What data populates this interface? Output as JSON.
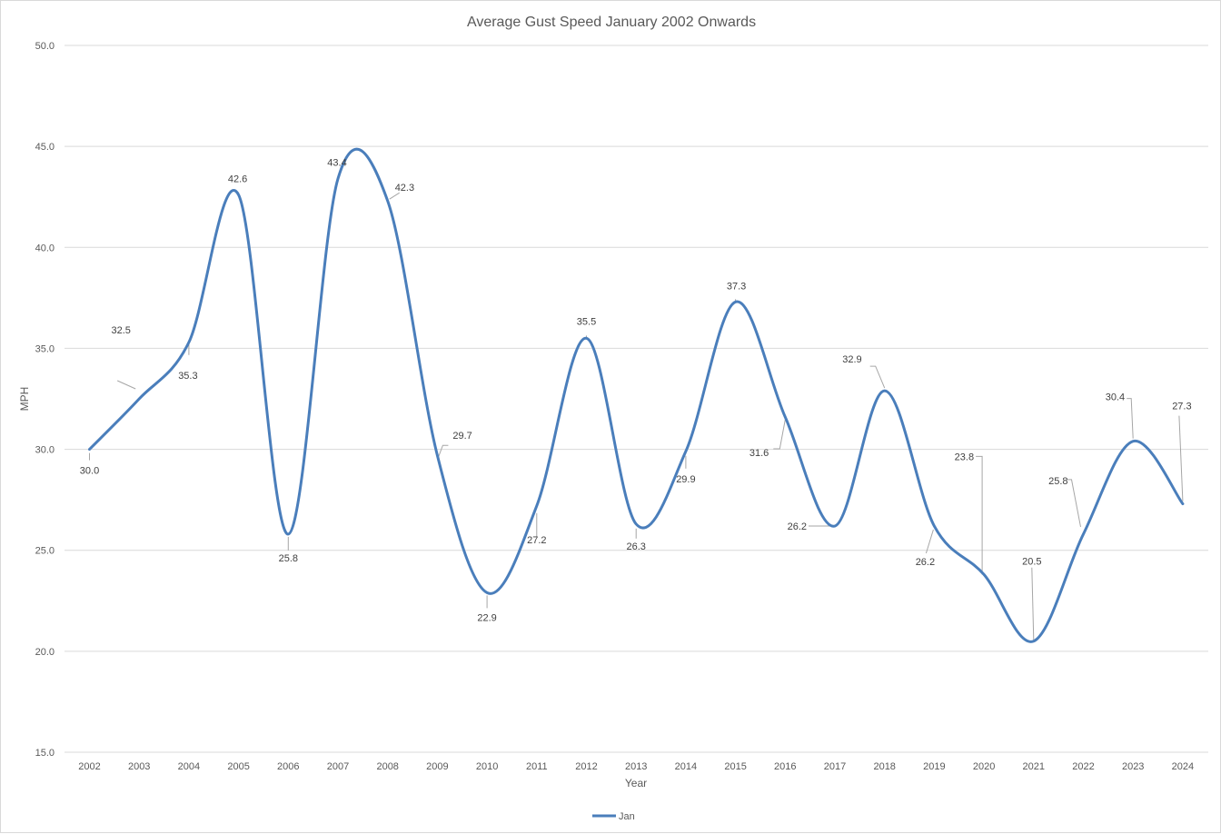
{
  "chart_data": {
    "type": "line",
    "title": "Average Gust Speed January 2002 Onwards",
    "xlabel": "Year",
    "ylabel": "MPH",
    "ylim": [
      15,
      50
    ],
    "y_ticks": [
      "15.0",
      "20.0",
      "25.0",
      "30.0",
      "35.0",
      "40.0",
      "45.0",
      "50.0"
    ],
    "categories": [
      "2002",
      "2003",
      "2004",
      "2005",
      "2006",
      "2007",
      "2008",
      "2009",
      "2010",
      "2011",
      "2012",
      "2013",
      "2014",
      "2015",
      "2016",
      "2017",
      "2018",
      "2019",
      "2020",
      "2021",
      "2022",
      "2023",
      "2024"
    ],
    "series": [
      {
        "name": "Jan",
        "color": "#4a7ebb",
        "values": [
          30.0,
          32.5,
          35.3,
          42.6,
          25.8,
          43.4,
          42.3,
          29.7,
          22.9,
          27.2,
          35.5,
          26.3,
          29.9,
          37.3,
          31.6,
          26.2,
          32.9,
          26.2,
          23.8,
          20.5,
          25.8,
          30.4,
          27.3
        ],
        "labels": [
          "30.0",
          "32.5",
          "35.3",
          "42.6",
          "25.8",
          "43.4",
          "42.3",
          "29.7",
          "22.9",
          "27.2",
          "35.5",
          "26.3",
          "29.9",
          "37.3",
          "31.6",
          "26.2",
          "32.9",
          "26.2",
          "23.8",
          "20.5",
          "25.8",
          "30.4",
          "27.3"
        ]
      }
    ],
    "smooth": true,
    "grid": true,
    "legend_position": "bottom",
    "gridline_color": "#d9d9d9",
    "leader_line_color": "#a6a6a6"
  }
}
